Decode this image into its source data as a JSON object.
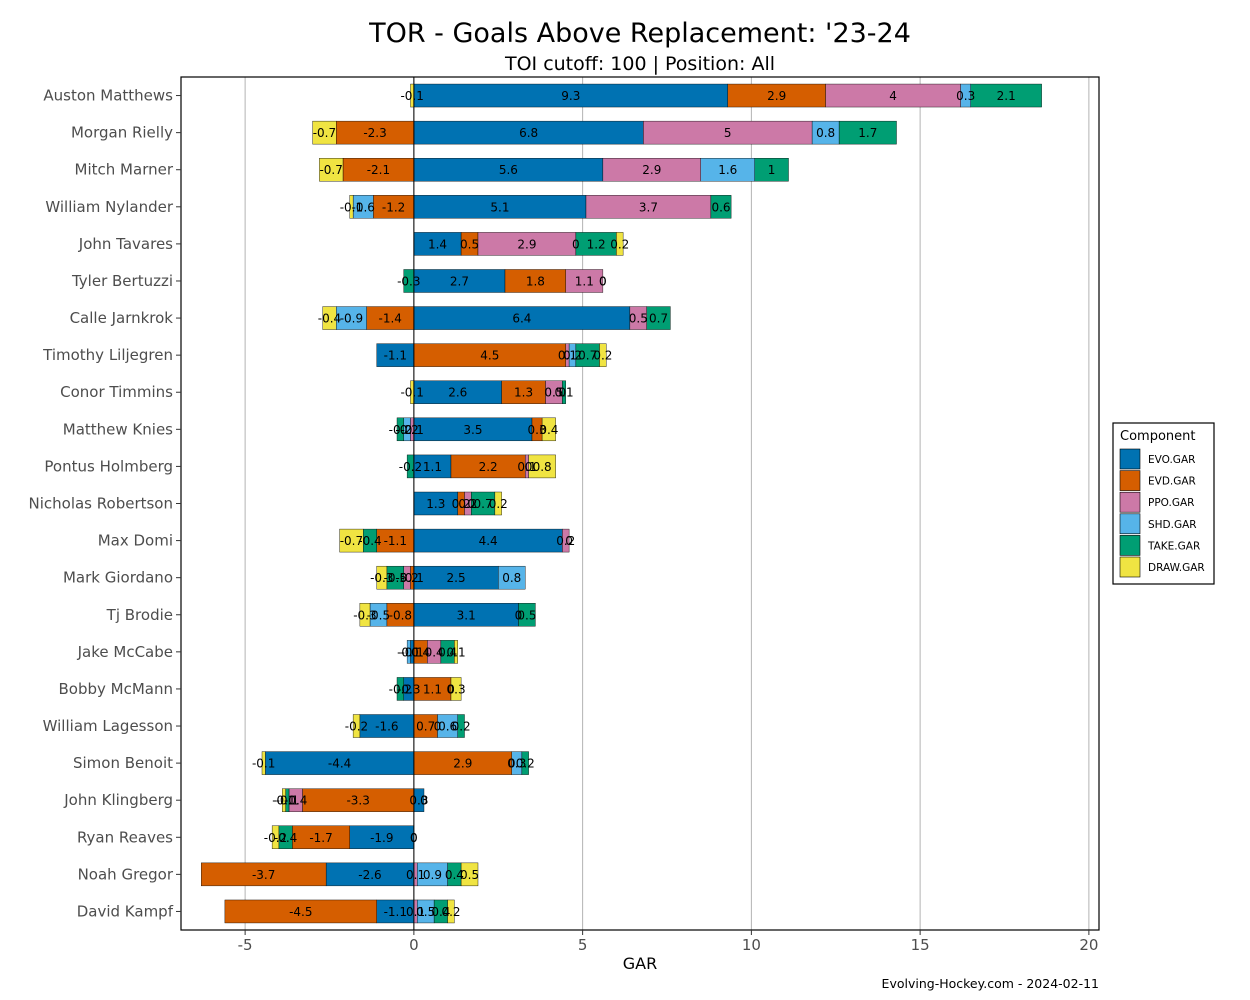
{
  "chart_data": {
    "type": "bar",
    "orientation": "horizontal",
    "stacked": true,
    "title": "TOR - Goals Above Replacement: '23-24",
    "subtitle": "TOI cutoff: 100 | Position: All",
    "xlabel": "GAR",
    "ylabel": "",
    "xlim": [
      -6.9,
      20.3
    ],
    "xticks": [
      -5,
      0,
      5,
      10,
      15,
      20
    ],
    "grid": true,
    "legend": {
      "title": "Component",
      "position": "right"
    },
    "caption": "Evolving-Hockey.com - 2024-02-11",
    "colors": {
      "EVO.GAR": "#0072b2",
      "EVD.GAR": "#d55e00",
      "PPO.GAR": "#cc79a7",
      "SHD.GAR": "#56b4e9",
      "TAKE.GAR": "#009e73",
      "DRAW.GAR": "#f0e442"
    },
    "components": [
      "EVO.GAR",
      "EVD.GAR",
      "PPO.GAR",
      "SHD.GAR",
      "TAKE.GAR",
      "DRAW.GAR"
    ],
    "categories": [
      "Auston Matthews",
      "Morgan Rielly",
      "Mitch Marner",
      "William Nylander",
      "John Tavares",
      "Tyler Bertuzzi",
      "Calle Jarnkrok",
      "Timothy Liljegren",
      "Conor Timmins",
      "Matthew Knies",
      "Pontus Holmberg",
      "Nicholas Robertson",
      "Max Domi",
      "Mark Giordano",
      "Tj Brodie",
      "Jake McCabe",
      "Bobby McMann",
      "William Lagesson",
      "Simon Benoit",
      "John Klingberg",
      "Ryan Reaves",
      "Noah Gregor",
      "David Kampf"
    ],
    "series": [
      {
        "name": "EVO.GAR",
        "values": [
          9.3,
          6.8,
          5.6,
          5.1,
          1.4,
          2.7,
          6.4,
          -1.1,
          2.6,
          3.5,
          1.1,
          1.3,
          4.4,
          2.5,
          3.1,
          -0.1,
          -0.3,
          -1.6,
          -4.4,
          0.3,
          -1.9,
          -2.6,
          -1.1
        ]
      },
      {
        "name": "EVD.GAR",
        "values": [
          2.9,
          -2.3,
          -2.1,
          -1.2,
          0.5,
          1.8,
          -1.4,
          4.5,
          1.3,
          0.3,
          2.2,
          0.2,
          -1.1,
          -0.1,
          -0.8,
          0.4,
          1.1,
          0.7,
          2.9,
          -3.3,
          -1.7,
          -3.7,
          -4.5
        ]
      },
      {
        "name": "PPO.GAR",
        "values": [
          4,
          5,
          2.9,
          3.7,
          2.9,
          1.1,
          0.5,
          0.1,
          0.5,
          -0.1,
          0.1,
          0.2,
          0.2,
          -0.2,
          0,
          0.4,
          0,
          0,
          0,
          -0.4,
          0,
          0.1,
          0.1
        ]
      },
      {
        "name": "SHD.GAR",
        "values": [
          0.3,
          0.8,
          1.6,
          -0.6,
          0,
          0,
          -0.9,
          0.2,
          0,
          -0.2,
          0,
          0,
          0,
          0.8,
          -0.5,
          -0.1,
          0,
          0.6,
          0.3,
          0,
          0,
          0.9,
          0.5
        ]
      },
      {
        "name": "TAKE.GAR",
        "values": [
          2.1,
          1.7,
          1,
          0.6,
          1.2,
          -0.3,
          0.7,
          0.7,
          0.1,
          -0.2,
          -0.2,
          0.7,
          -0.4,
          -0.5,
          0.5,
          0.4,
          -0.2,
          0.2,
          0.2,
          -0.1,
          -0.4,
          0.4,
          0.4
        ]
      },
      {
        "name": "DRAW.GAR",
        "values": [
          -0.1,
          -0.7,
          -0.7,
          -0.1,
          0.2,
          0,
          -0.4,
          0.2,
          -0.1,
          0.4,
          0.8,
          0.2,
          -0.7,
          -0.3,
          -0.3,
          0.1,
          0.3,
          -0.2,
          -0.1,
          -0.1,
          -0.2,
          0.5,
          0.2
        ]
      }
    ]
  }
}
